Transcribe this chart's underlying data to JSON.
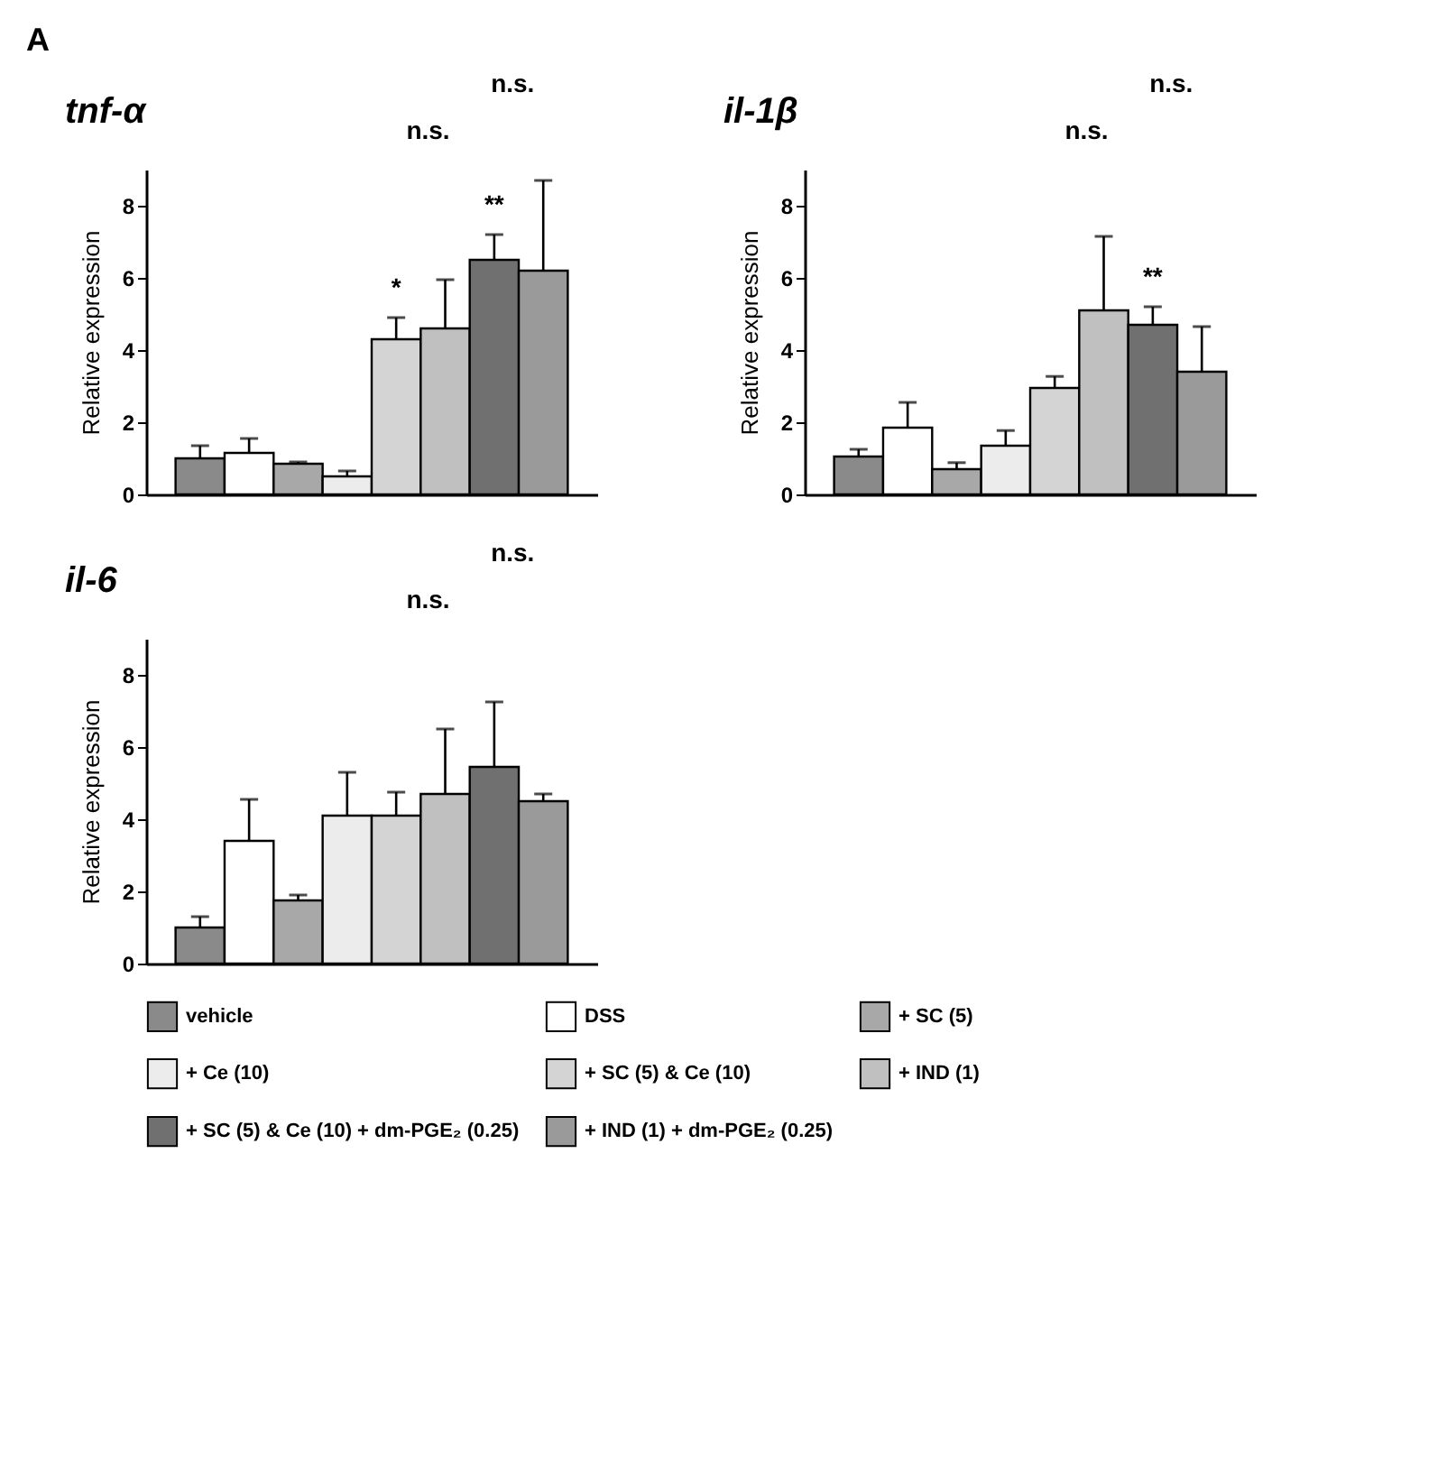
{
  "chart_data": [
    {
      "type": "bar",
      "title": "tnf-α",
      "ylabel": "Relative expression",
      "categories": [
        null,
        null,
        null,
        null,
        null,
        null,
        null,
        null
      ],
      "values": [
        1.0,
        1.15,
        0.85,
        0.5,
        4.3,
        4.6,
        6.5,
        6.2
      ],
      "errors": [
        0.35,
        0.4,
        0.05,
        0.15,
        0.6,
        1.35,
        0.7,
        2.5
      ],
      "colors": [
        "#8a8a8a",
        "#ffffff",
        "#a8a8a8",
        "#ececec",
        "#d4d4d4",
        "#c0c0c0",
        "#707070",
        "#9a9a9a"
      ],
      "value_labels": [
        null,
        null,
        null,
        null,
        "*",
        null,
        "**",
        null
      ],
      "ylim": [
        0,
        9
      ],
      "yticks": [
        0,
        2,
        4,
        6,
        8
      ],
      "tick_labels": "y",
      "annotations": [
        "A",
        "n.s.",
        "n.s."
      ]
    },
    {
      "type": "bar",
      "title": "il-1β",
      "ylabel": "Relative expression",
      "categories": [
        null,
        null,
        null,
        null,
        null,
        null,
        null,
        null
      ],
      "values": [
        1.05,
        1.85,
        0.7,
        1.35,
        2.95,
        5.1,
        4.7,
        3.4
      ],
      "errors": [
        0.2,
        0.7,
        0.18,
        0.42,
        0.32,
        2.05,
        0.5,
        1.25
      ],
      "colors": [
        "#8a8a8a",
        "#ffffff",
        "#a8a8a8",
        "#ececec",
        "#d4d4d4",
        "#c0c0c0",
        "#707070",
        "#9a9a9a"
      ],
      "value_labels": [
        null,
        null,
        null,
        null,
        null,
        null,
        "**",
        null
      ],
      "ylim": [
        0,
        9
      ],
      "yticks": [
        0,
        2,
        4,
        6,
        8
      ],
      "tick_labels": "y",
      "annotations": [
        "n.s.",
        "n.s."
      ]
    },
    {
      "type": "bar",
      "title": "il-6",
      "ylabel": "Relative expression",
      "categories": [
        null,
        null,
        null,
        null,
        null,
        null,
        null,
        null
      ],
      "series": [
        {
          "name": "vehicle",
          "color": "#8a8a8a",
          "values": [
            1.0,
            null,
            null,
            null,
            null,
            null,
            null,
            null
          ],
          "errors": [
            0.3,
            null,
            null,
            null,
            null,
            null,
            null,
            null
          ]
        },
        {
          "name": "DSS",
          "color": "#ffffff",
          "values": [
            null,
            3.4,
            null,
            null,
            null,
            null,
            null,
            null
          ],
          "errors": [
            null,
            1.15,
            null,
            null,
            null,
            null,
            null,
            null
          ]
        },
        {
          "name": "+ SC (5)",
          "color": "#a8a8a8",
          "values": [
            null,
            null,
            1.75,
            null,
            null,
            null,
            null,
            null
          ],
          "errors": [
            null,
            null,
            0.15,
            null,
            null,
            null,
            null,
            null
          ]
        },
        {
          "name": "+ Ce (10)",
          "color": "#ececec",
          "values": [
            null,
            null,
            null,
            4.1,
            null,
            null,
            null,
            null
          ],
          "errors": [
            null,
            null,
            null,
            1.2,
            null,
            null,
            null,
            null
          ]
        },
        {
          "name": "+ SC (5) & Ce (10)",
          "color": "#d4d4d4",
          "values": [
            null,
            null,
            null,
            null,
            4.1,
            null,
            null,
            null
          ],
          "errors": [
            null,
            null,
            null,
            null,
            0.65,
            null,
            null,
            null
          ]
        },
        {
          "name": "+ IND (1)",
          "color": "#c0c0c0",
          "values": [
            null,
            null,
            null,
            null,
            null,
            4.7,
            null,
            null
          ],
          "errors": [
            null,
            null,
            null,
            null,
            null,
            1.8,
            null,
            null
          ]
        },
        {
          "name": "+ SC (5) & Ce (10) + dm-PGE₂ (0.25)",
          "color": "#707070",
          "values": [
            null,
            null,
            null,
            null,
            null,
            null,
            5.45,
            null
          ],
          "errors": [
            null,
            null,
            null,
            null,
            null,
            null,
            1.8,
            null
          ]
        },
        {
          "name": "+ IND (1) + dm-PGE₂ (0.25)",
          "color": "#9a9a9a",
          "values": [
            null,
            null,
            null,
            null,
            null,
            null,
            null,
            4.5
          ],
          "errors": [
            null,
            null,
            null,
            null,
            null,
            null,
            null,
            0.2
          ]
        }
      ],
      "legend": "bottom",
      "ylim": [
        0,
        9
      ],
      "yticks": [
        0,
        2,
        4,
        6,
        8
      ],
      "tick_labels": "y",
      "annotations": [
        "n.s.",
        "n.s."
      ]
    }
  ]
}
